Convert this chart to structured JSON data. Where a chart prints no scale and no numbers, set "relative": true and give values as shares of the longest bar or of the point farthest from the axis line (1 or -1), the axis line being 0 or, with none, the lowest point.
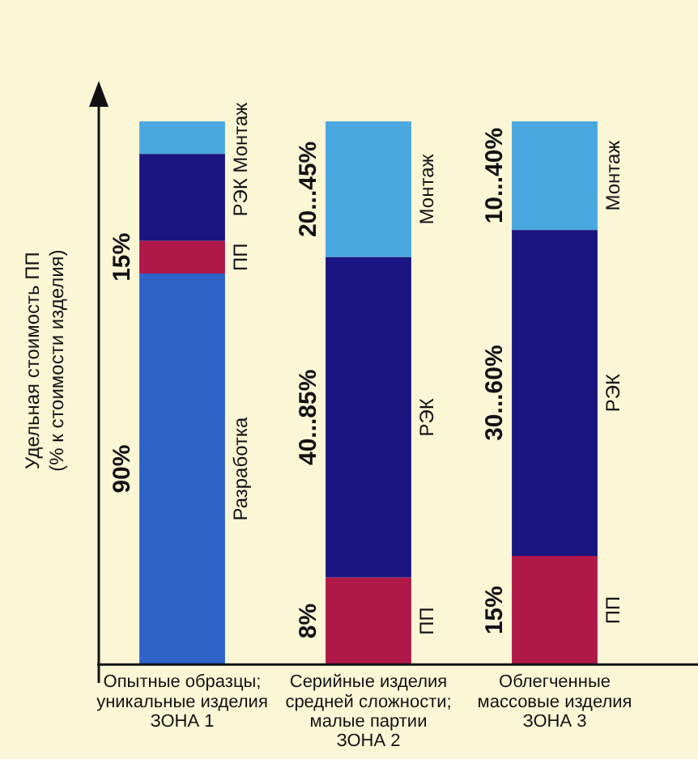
{
  "chart_data": {
    "type": "bar",
    "stacked": true,
    "relative": true,
    "grid": false,
    "legend": false,
    "ylabel": "Удельная стоимость ПП\n(% к стоимости изделия)",
    "categories": [
      "Опытные образцы;\nуникальные изделия\nЗОНА 1",
      "Серийные изделия\nсредней сложности;\nмалые партии\nЗОНА 2",
      "Облегченные\nмассовые изделия\nЗОНА 3"
    ],
    "series": [
      {
        "name": "Разработка",
        "color": "#2e64c8",
        "values": [
          0.72,
          0,
          0
        ]
      },
      {
        "name": "ПП",
        "color": "#b0184a",
        "values": [
          0.06,
          0.16,
          0.2
        ]
      },
      {
        "name": "РЭК",
        "color": "#1a1580",
        "values": [
          0.16,
          0.59,
          0.6
        ]
      },
      {
        "name": "Монтаж",
        "color": "#4aa8e0",
        "values": [
          0.06,
          0.25,
          0.2
        ]
      }
    ],
    "annotations": [
      "90%",
      "15%",
      "8%",
      "40...85%",
      "20...45%",
      "15%",
      "30...60%",
      "10...40%"
    ]
  }
}
